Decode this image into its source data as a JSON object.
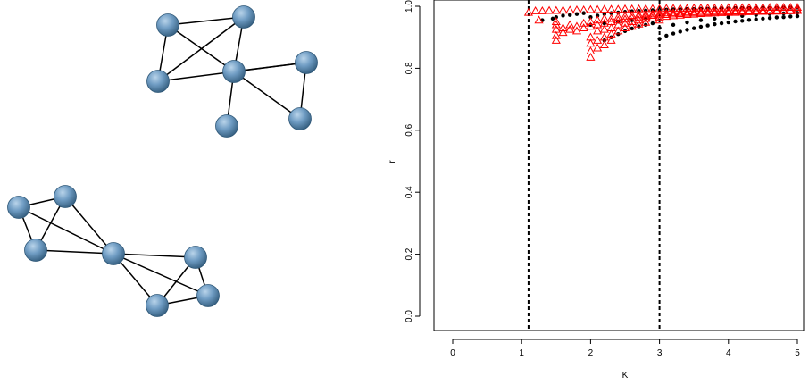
{
  "chart_data": [
    {
      "type": "diagram",
      "nodes": [
        {
          "id": "A1"
        },
        {
          "id": "A2"
        },
        {
          "id": "A3"
        },
        {
          "id": "A4"
        },
        {
          "id": "A5"
        },
        {
          "id": "A6"
        },
        {
          "id": "A7"
        },
        {
          "id": "A8"
        },
        {
          "id": "B1"
        },
        {
          "id": "B2"
        },
        {
          "id": "B3"
        },
        {
          "id": "B4"
        },
        {
          "id": "B5"
        },
        {
          "id": "B6"
        },
        {
          "id": "B7"
        }
      ],
      "edges": [
        [
          "A1",
          "A2"
        ],
        [
          "A1",
          "A3"
        ],
        [
          "A1",
          "A4"
        ],
        [
          "A2",
          "A3"
        ],
        [
          "A2",
          "A4"
        ],
        [
          "A3",
          "A5"
        ],
        [
          "A4",
          "A5"
        ],
        [
          "A4",
          "A6"
        ],
        [
          "A4",
          "A7"
        ],
        [
          "A4",
          "A8"
        ],
        [
          "A5",
          "A7"
        ],
        [
          "A6",
          "A8"
        ],
        [
          "A7",
          "A8"
        ],
        [
          "B1",
          "B2"
        ],
        [
          "B1",
          "B3"
        ],
        [
          "B1",
          "B4"
        ],
        [
          "B2",
          "B3"
        ],
        [
          "B2",
          "B4"
        ],
        [
          "B3",
          "B4"
        ],
        [
          "B4",
          "B5"
        ],
        [
          "B4",
          "B6"
        ],
        [
          "B4",
          "B7"
        ],
        [
          "B5",
          "B6"
        ],
        [
          "B5",
          "B7"
        ],
        [
          "B6",
          "B7"
        ]
      ],
      "node_color": "#5f8db6"
    },
    {
      "type": "scatter",
      "xlabel": "K",
      "ylabel": "r",
      "xlim": [
        0,
        5
      ],
      "ylim": [
        0,
        1
      ],
      "x_ticks": [
        "0",
        "1",
        "2",
        "3",
        "4",
        "5"
      ],
      "y_ticks": [
        "0.0",
        "0.2",
        "0.4",
        "0.6",
        "0.8",
        "1.0"
      ],
      "vlines": [
        1.1,
        3.0
      ],
      "grid": false,
      "legend": "none",
      "series": [
        {
          "marker": "dot",
          "color": "#000000",
          "points": [
            [
              1.3,
              0.955
            ],
            [
              1.45,
              0.96
            ],
            [
              1.5,
              0.965
            ],
            [
              1.6,
              0.97
            ],
            [
              1.7,
              0.972
            ],
            [
              1.8,
              0.975
            ],
            [
              1.9,
              0.978
            ],
            [
              2.0,
              0.965
            ],
            [
              2.1,
              0.97
            ],
            [
              2.2,
              0.975
            ],
            [
              2.3,
              0.978
            ],
            [
              2.4,
              0.98
            ],
            [
              2.5,
              0.982
            ],
            [
              2.6,
              0.984
            ],
            [
              2.7,
              0.985
            ],
            [
              2.8,
              0.986
            ],
            [
              2.9,
              0.987
            ],
            [
              3.0,
              0.988
            ],
            [
              3.1,
              0.989
            ],
            [
              3.2,
              0.99
            ],
            [
              3.3,
              0.99
            ],
            [
              3.4,
              0.991
            ],
            [
              3.5,
              0.991
            ],
            [
              3.6,
              0.992
            ],
            [
              3.7,
              0.992
            ],
            [
              3.8,
              0.993
            ],
            [
              3.9,
              0.993
            ],
            [
              4.0,
              0.993
            ],
            [
              4.1,
              0.994
            ],
            [
              4.2,
              0.994
            ],
            [
              4.3,
              0.994
            ],
            [
              4.4,
              0.995
            ],
            [
              4.5,
              0.995
            ],
            [
              4.6,
              0.995
            ],
            [
              4.7,
              0.995
            ],
            [
              4.8,
              0.996
            ],
            [
              4.9,
              0.996
            ],
            [
              5.0,
              0.996
            ],
            [
              2.2,
              0.89
            ],
            [
              2.3,
              0.9
            ],
            [
              2.4,
              0.91
            ],
            [
              2.5,
              0.92
            ],
            [
              2.6,
              0.928
            ],
            [
              2.7,
              0.935
            ],
            [
              2.8,
              0.94
            ],
            [
              2.9,
              0.945
            ],
            [
              3.0,
              0.895
            ],
            [
              3.1,
              0.905
            ],
            [
              3.2,
              0.912
            ],
            [
              3.3,
              0.918
            ],
            [
              3.4,
              0.924
            ],
            [
              3.5,
              0.929
            ],
            [
              3.6,
              0.934
            ],
            [
              3.7,
              0.938
            ],
            [
              3.8,
              0.942
            ],
            [
              3.9,
              0.945
            ],
            [
              4.0,
              0.948
            ],
            [
              4.1,
              0.951
            ],
            [
              4.2,
              0.953
            ],
            [
              4.3,
              0.956
            ],
            [
              4.4,
              0.958
            ],
            [
              4.5,
              0.96
            ],
            [
              4.6,
              0.962
            ],
            [
              4.7,
              0.964
            ],
            [
              4.8,
              0.965
            ],
            [
              4.9,
              0.967
            ],
            [
              5.0,
              0.968
            ],
            [
              3.0,
              0.93
            ],
            [
              3.2,
              0.94
            ],
            [
              3.4,
              0.948
            ],
            [
              3.6,
              0.955
            ],
            [
              3.8,
              0.96
            ],
            [
              4.0,
              0.965
            ],
            [
              4.2,
              0.969
            ],
            [
              4.4,
              0.972
            ],
            [
              4.6,
              0.975
            ],
            [
              4.8,
              0.977
            ],
            [
              5.0,
              0.979
            ],
            [
              2.0,
              0.94
            ],
            [
              2.2,
              0.945
            ],
            [
              2.4,
              0.95
            ],
            [
              2.6,
              0.955
            ],
            [
              2.8,
              0.96
            ]
          ]
        },
        {
          "marker": "triangle",
          "color": "#ff0000",
          "points": [
            [
              1.1,
              0.98
            ],
            [
              1.2,
              0.985
            ],
            [
              1.3,
              0.985
            ],
            [
              1.4,
              0.986
            ],
            [
              1.5,
              0.986
            ],
            [
              1.6,
              0.987
            ],
            [
              1.7,
              0.987
            ],
            [
              1.8,
              0.988
            ],
            [
              1.9,
              0.988
            ],
            [
              2.0,
              0.989
            ],
            [
              2.1,
              0.989
            ],
            [
              2.2,
              0.99
            ],
            [
              2.3,
              0.99
            ],
            [
              2.4,
              0.99
            ],
            [
              2.5,
              0.991
            ],
            [
              2.6,
              0.991
            ],
            [
              2.7,
              0.991
            ],
            [
              2.8,
              0.992
            ],
            [
              2.9,
              0.992
            ],
            [
              3.0,
              0.992
            ],
            [
              3.1,
              0.993
            ],
            [
              3.2,
              0.993
            ],
            [
              3.3,
              0.993
            ],
            [
              3.4,
              0.993
            ],
            [
              3.5,
              0.994
            ],
            [
              3.6,
              0.994
            ],
            [
              3.7,
              0.994
            ],
            [
              3.8,
              0.994
            ],
            [
              3.9,
              0.994
            ],
            [
              4.0,
              0.995
            ],
            [
              4.1,
              0.995
            ],
            [
              4.2,
              0.995
            ],
            [
              4.3,
              0.995
            ],
            [
              4.4,
              0.995
            ],
            [
              4.5,
              0.996
            ],
            [
              4.6,
              0.996
            ],
            [
              4.7,
              0.996
            ],
            [
              4.8,
              0.996
            ],
            [
              4.9,
              0.996
            ],
            [
              5.0,
              0.996
            ],
            [
              1.25,
              0.955
            ],
            [
              1.5,
              0.95
            ],
            [
              1.5,
              0.94
            ],
            [
              1.5,
              0.925
            ],
            [
              1.5,
              0.905
            ],
            [
              1.5,
              0.89
            ],
            [
              1.6,
              0.93
            ],
            [
              1.6,
              0.915
            ],
            [
              1.7,
              0.94
            ],
            [
              1.7,
              0.925
            ],
            [
              1.8,
              0.935
            ],
            [
              1.8,
              0.92
            ],
            [
              1.9,
              0.945
            ],
            [
              1.9,
              0.93
            ],
            [
              2.0,
              0.95
            ],
            [
              2.0,
              0.935
            ],
            [
              2.0,
              0.9
            ],
            [
              2.0,
              0.88
            ],
            [
              2.0,
              0.855
            ],
            [
              2.0,
              0.835
            ],
            [
              2.1,
              0.955
            ],
            [
              2.1,
              0.94
            ],
            [
              2.1,
              0.92
            ],
            [
              2.1,
              0.89
            ],
            [
              2.1,
              0.865
            ],
            [
              2.2,
              0.96
            ],
            [
              2.2,
              0.945
            ],
            [
              2.2,
              0.925
            ],
            [
              2.2,
              0.9
            ],
            [
              2.2,
              0.875
            ],
            [
              2.3,
              0.96
            ],
            [
              2.3,
              0.95
            ],
            [
              2.3,
              0.93
            ],
            [
              2.3,
              0.91
            ],
            [
              2.3,
              0.89
            ],
            [
              2.4,
              0.965
            ],
            [
              2.4,
              0.955
            ],
            [
              2.4,
              0.94
            ],
            [
              2.4,
              0.92
            ],
            [
              2.5,
              0.968
            ],
            [
              2.5,
              0.958
            ],
            [
              2.5,
              0.945
            ],
            [
              2.5,
              0.93
            ],
            [
              2.6,
              0.97
            ],
            [
              2.6,
              0.962
            ],
            [
              2.6,
              0.95
            ],
            [
              2.6,
              0.935
            ],
            [
              2.7,
              0.972
            ],
            [
              2.7,
              0.965
            ],
            [
              2.7,
              0.955
            ],
            [
              2.7,
              0.942
            ],
            [
              2.8,
              0.974
            ],
            [
              2.8,
              0.968
            ],
            [
              2.8,
              0.96
            ],
            [
              2.8,
              0.948
            ],
            [
              2.9,
              0.975
            ],
            [
              2.9,
              0.97
            ],
            [
              2.9,
              0.962
            ],
            [
              3.0,
              0.977
            ],
            [
              3.0,
              0.972
            ],
            [
              3.0,
              0.965
            ],
            [
              3.0,
              0.955
            ],
            [
              3.1,
              0.978
            ],
            [
              3.1,
              0.973
            ],
            [
              3.1,
              0.967
            ],
            [
              3.2,
              0.979
            ],
            [
              3.2,
              0.975
            ],
            [
              3.2,
              0.969
            ],
            [
              3.3,
              0.98
            ],
            [
              3.3,
              0.976
            ],
            [
              3.3,
              0.971
            ],
            [
              3.4,
              0.981
            ],
            [
              3.4,
              0.977
            ],
            [
              3.4,
              0.973
            ],
            [
              3.5,
              0.982
            ],
            [
              3.5,
              0.978
            ],
            [
              3.5,
              0.974
            ],
            [
              3.6,
              0.983
            ],
            [
              3.6,
              0.979
            ],
            [
              3.6,
              0.976
            ],
            [
              3.7,
              0.983
            ],
            [
              3.7,
              0.98
            ],
            [
              3.7,
              0.977
            ],
            [
              3.8,
              0.984
            ],
            [
              3.8,
              0.981
            ],
            [
              3.8,
              0.978
            ],
            [
              3.9,
              0.984
            ],
            [
              3.9,
              0.982
            ],
            [
              3.9,
              0.979
            ],
            [
              4.0,
              0.985
            ],
            [
              4.0,
              0.982
            ],
            [
              4.0,
              0.98
            ],
            [
              4.1,
              0.985
            ],
            [
              4.1,
              0.983
            ],
            [
              4.1,
              0.98
            ],
            [
              4.2,
              0.986
            ],
            [
              4.2,
              0.984
            ],
            [
              4.2,
              0.981
            ],
            [
              4.3,
              0.986
            ],
            [
              4.3,
              0.984
            ],
            [
              4.3,
              0.982
            ],
            [
              4.4,
              0.987
            ],
            [
              4.4,
              0.985
            ],
            [
              4.4,
              0.983
            ],
            [
              4.5,
              0.987
            ],
            [
              4.5,
              0.985
            ],
            [
              4.5,
              0.983
            ],
            [
              4.6,
              0.987
            ],
            [
              4.6,
              0.986
            ],
            [
              4.6,
              0.984
            ],
            [
              4.7,
              0.988
            ],
            [
              4.7,
              0.986
            ],
            [
              4.7,
              0.984
            ],
            [
              4.8,
              0.988
            ],
            [
              4.8,
              0.986
            ],
            [
              4.8,
              0.985
            ],
            [
              4.9,
              0.988
            ],
            [
              4.9,
              0.987
            ],
            [
              4.9,
              0.985
            ],
            [
              5.0,
              0.989
            ],
            [
              5.0,
              0.987
            ],
            [
              5.0,
              0.986
            ]
          ]
        }
      ]
    }
  ]
}
